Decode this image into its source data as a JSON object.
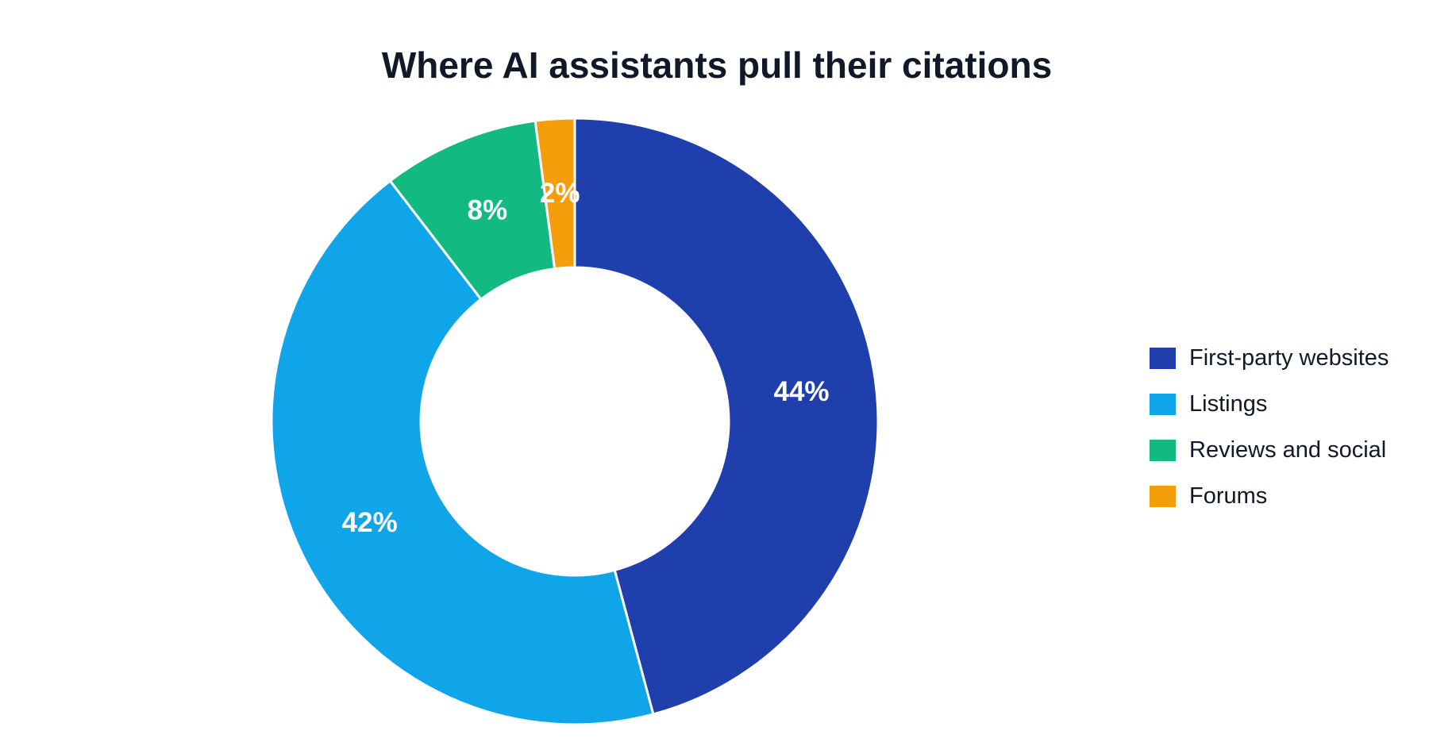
{
  "chart_data": {
    "type": "pie",
    "title": "Where AI assistants pull their citations",
    "donut": true,
    "legend_position": "right",
    "categories": [
      "First-party websites",
      "Listings",
      "Reviews and social",
      "Forums"
    ],
    "values": [
      44,
      42,
      8,
      2
    ],
    "labels": [
      "44%",
      "42%",
      "8%",
      "2%"
    ],
    "colors": [
      "#1f3fad",
      "#10a5e8",
      "#12b981",
      "#f59e0b"
    ],
    "unit": "%"
  }
}
